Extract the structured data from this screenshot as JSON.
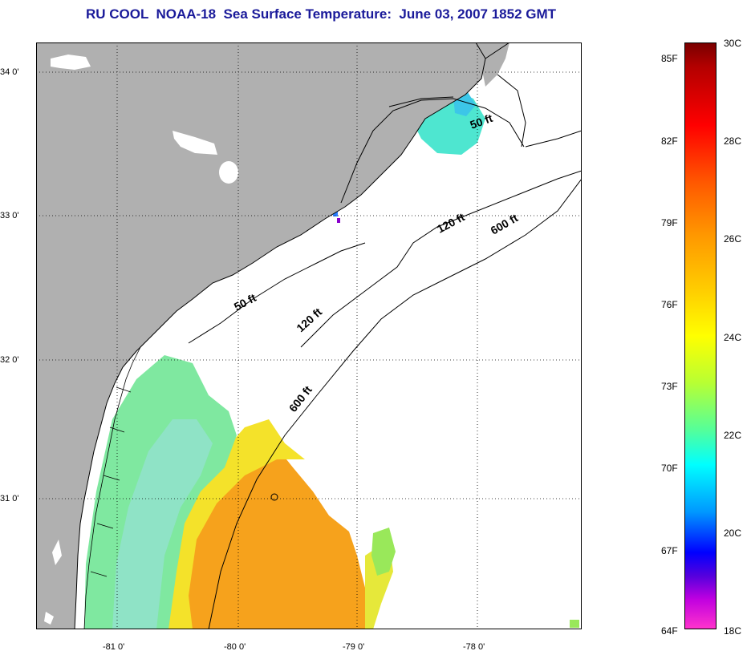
{
  "title": "RU COOL  NOAA-18  Sea Surface Temperature:  June 03, 2007 1852 GMT",
  "map": {
    "latitude_labels": [
      "34 0'",
      "33 0'",
      "32 0'",
      "31 0'"
    ],
    "longitude_labels": [
      "-81 0'",
      "-80 0'",
      "-79 0'",
      "-78 0'"
    ],
    "isobath_labels": [
      "50 ft",
      "50 ft",
      "120 ft",
      "120 ft",
      "600 ft",
      "600 ft"
    ],
    "colors": {
      "land": "#b0b0b0",
      "ocean_no_data": "#ffffff",
      "coastline": "#000000"
    }
  },
  "colorbar": {
    "fahrenheit_labels": [
      "85F",
      "82F",
      "79F",
      "76F",
      "73F",
      "70F",
      "67F",
      "64F"
    ],
    "celsius_labels": [
      "30C",
      "28C",
      "26C",
      "24C",
      "22C",
      "20C",
      "18C"
    ],
    "colors": [
      "#7a0000",
      "#ff0000",
      "#ff9900",
      "#ffff00",
      "#55ff99",
      "#00ffff",
      "#0000ff",
      "#ff33cc"
    ]
  }
}
